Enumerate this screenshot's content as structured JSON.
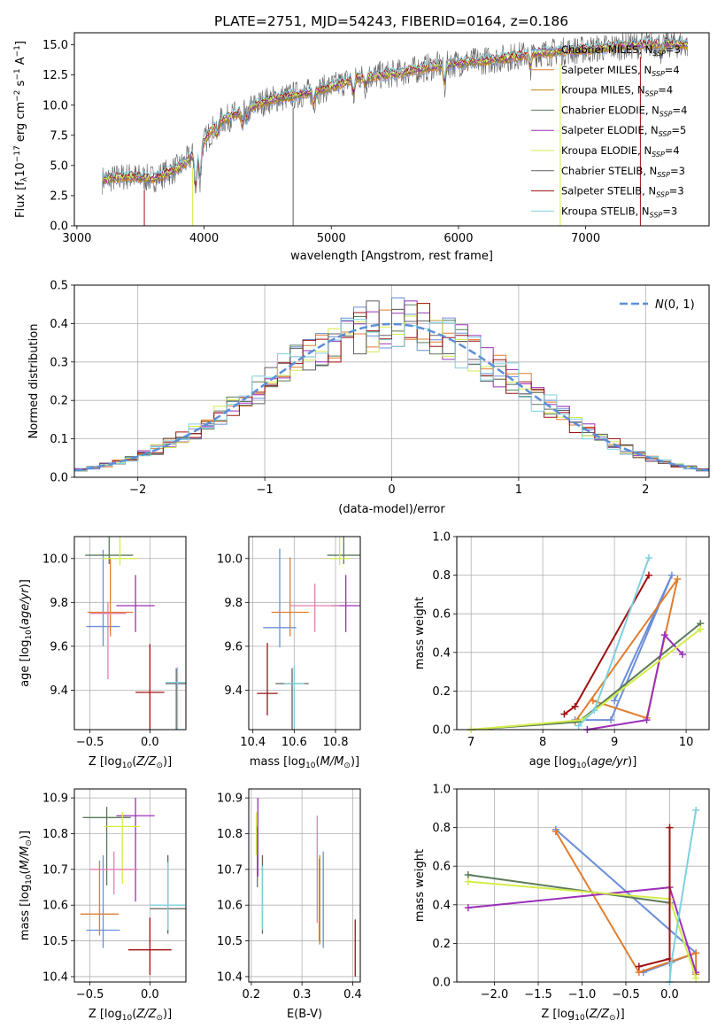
{
  "title": "PLATE=2751, MJD=54243, FIBERID=0164, z=0.186",
  "colors": {
    "chabrier_miles": "#6a8fd8",
    "salpeter_miles": "#e07d2e",
    "kroupa_miles": "#b8860b",
    "chabrier_elodie": "#5a7a5a",
    "salpeter_elodie": "#9b30b8",
    "kroupa_elodie": "#d4ec4a",
    "chabrier_stelib": "#606060",
    "salpeter_stelib": "#a01010",
    "kroupa_stelib": "#7fd0e0",
    "extra_pink": "#e37fb0",
    "gaussian": "#5b8fd8",
    "grid": "#b0b0b0"
  },
  "chart_data": [
    {
      "id": "spectrum",
      "type": "line",
      "xlabel": "wavelength [Angstrom, rest frame]",
      "ylabel": "Flux [f_λ 10^-17 erg cm^-2 s^-1 A^-1]",
      "xlim": [
        2980,
        7970
      ],
      "ylim": [
        0,
        16
      ],
      "xticks": [
        "3000",
        "4000",
        "5000",
        "6000",
        "7000"
      ],
      "yticks": [
        "0.0",
        "2.5",
        "5.0",
        "7.5",
        "10.0",
        "12.5",
        "15.0"
      ],
      "legend_position": "top-right",
      "legend": [
        {
          "name": "Chabrier MILES, N",
          "sub": "SSP",
          "suffix": "=3",
          "color_key": "chabrier_miles"
        },
        {
          "name": "Salpeter MILES, N",
          "sub": "SSP",
          "suffix": "=4",
          "color_key": "salpeter_miles"
        },
        {
          "name": "Kroupa MILES, N",
          "sub": "SSP",
          "suffix": "=4",
          "color_key": "kroupa_miles"
        },
        {
          "name": "Chabrier ELODIE, N",
          "sub": "SSP",
          "suffix": "=4",
          "color_key": "chabrier_elodie"
        },
        {
          "name": "Salpeter ELODIE, N",
          "sub": "SSP",
          "suffix": "=5",
          "color_key": "salpeter_elodie"
        },
        {
          "name": "Kroupa ELODIE, N",
          "sub": "SSP",
          "suffix": "=4",
          "color_key": "kroupa_elodie"
        },
        {
          "name": "Chabrier STELIB, N",
          "sub": "SSP",
          "suffix": "=3",
          "color_key": "chabrier_stelib"
        },
        {
          "name": "Salpeter STELIB, N",
          "sub": "SSP",
          "suffix": "=3",
          "color_key": "salpeter_stelib"
        },
        {
          "name": "Kroupa STELIB, N",
          "sub": "SSP",
          "suffix": "=3",
          "color_key": "kroupa_stelib"
        }
      ],
      "continuum": [
        [
          3200,
          3.8
        ],
        [
          3400,
          4.1
        ],
        [
          3600,
          3.9
        ],
        [
          3800,
          4.8
        ],
        [
          3950,
          6.2
        ],
        [
          4100,
          8.5
        ],
        [
          4300,
          9.5
        ],
        [
          4500,
          10.4
        ],
        [
          4800,
          11.0
        ],
        [
          5000,
          11.5
        ],
        [
          5200,
          12.3
        ],
        [
          5500,
          12.6
        ],
        [
          5800,
          13.2
        ],
        [
          6000,
          13.5
        ],
        [
          6300,
          13.8
        ],
        [
          6600,
          14.3
        ],
        [
          7000,
          14.6
        ],
        [
          7300,
          14.9
        ],
        [
          7600,
          15.1
        ],
        [
          7800,
          15.0
        ]
      ]
    },
    {
      "id": "residuals",
      "type": "line",
      "xlabel": "(data-model)/error",
      "ylabel": "Normed distribution",
      "xlim": [
        -2.5,
        2.5
      ],
      "ylim": [
        0,
        0.5
      ],
      "xticks": [
        "−2",
        "−1",
        "0",
        "1",
        "2"
      ],
      "yticks": [
        "0.0",
        "0.1",
        "0.2",
        "0.3",
        "0.4",
        "0.5"
      ],
      "legend_position": "top-right",
      "gaussian_label": "N(0, 1)"
    },
    {
      "id": "age_vs_Z",
      "type": "scatter",
      "xlabel": "Z [log10(Z/Z⊙)]",
      "ylabel": "age [log10(age/yr)]",
      "xlim": [
        -0.63,
        0.3
      ],
      "ylim": [
        9.22,
        10.1
      ],
      "xticks": [
        "−0.5",
        "0.0"
      ],
      "yticks": [
        "9.4",
        "9.6",
        "9.8",
        "10.0"
      ],
      "points": [
        {
          "x": -0.39,
          "y": 9.69,
          "xerr": 0.14,
          "yerr": [
            0.09,
            0.35
          ],
          "color_key": "chabrier_miles"
        },
        {
          "x": -0.33,
          "y": 9.755,
          "xerr": 0.19,
          "yerr": [
            0.11,
            0.25
          ],
          "color_key": "salpeter_miles"
        },
        {
          "x": -0.34,
          "y": 10.015,
          "xerr": 0.2,
          "yerr": [
            0.04,
            0.37
          ],
          "color_key": "chabrier_elodie"
        },
        {
          "x": -0.12,
          "y": 9.785,
          "xerr": 0.16,
          "yerr": [
            0.12,
            0.14
          ],
          "color_key": "salpeter_elodie"
        },
        {
          "x": -0.25,
          "y": 10.0,
          "xerr": 0.15,
          "yerr": [
            0.03,
            0.26
          ],
          "color_key": "kroupa_elodie"
        },
        {
          "x": 0.22,
          "y": 9.43,
          "xerr": 0.09,
          "yerr": [
            0.35,
            0.07
          ],
          "color_key": "chabrier_stelib"
        },
        {
          "x": 0.0,
          "y": 9.39,
          "xerr": 0.12,
          "yerr": [
            0.23,
            0.22
          ],
          "color_key": "salpeter_stelib"
        },
        {
          "x": 0.23,
          "y": 9.435,
          "xerr": 0.1,
          "yerr": [
            0.32,
            0.07
          ],
          "color_key": "kroupa_stelib"
        },
        {
          "x": -0.35,
          "y": 9.75,
          "xerr": 0.15,
          "yerr": [
            0.3,
            0.05
          ],
          "color_key": "extra_pink"
        }
      ]
    },
    {
      "id": "age_vs_mass",
      "type": "scatter",
      "xlabel": "mass [log10(M/M⊙)]",
      "ylabel": "",
      "xlim": [
        10.38,
        10.92
      ],
      "ylim": [
        9.22,
        10.1
      ],
      "xticks": [
        "10.4",
        "10.6",
        "10.8"
      ],
      "yticks": [
        "9.4",
        "9.6",
        "9.8",
        "10.0"
      ],
      "points": [
        {
          "x": 10.53,
          "y": 9.685,
          "xerr": 0.08,
          "yerr": [
            0.09,
            0.36
          ],
          "color_key": "chabrier_miles"
        },
        {
          "x": 10.58,
          "y": 9.755,
          "xerr": 0.09,
          "yerr": [
            0.11,
            0.25
          ],
          "color_key": "salpeter_miles"
        },
        {
          "x": 10.84,
          "y": 10.015,
          "xerr": 0.08,
          "yerr": [
            0.04,
            0.37
          ],
          "color_key": "chabrier_elodie"
        },
        {
          "x": 10.85,
          "y": 9.785,
          "xerr": 0.07,
          "yerr": [
            0.12,
            0.14
          ],
          "color_key": "salpeter_elodie"
        },
        {
          "x": 10.82,
          "y": 10.0,
          "xerr": 0.05,
          "yerr": [
            0.03,
            0.26
          ],
          "color_key": "kroupa_elodie"
        },
        {
          "x": 10.59,
          "y": 9.43,
          "xerr": 0.08,
          "yerr": [
            0.35,
            0.07
          ],
          "color_key": "chabrier_stelib"
        },
        {
          "x": 10.47,
          "y": 9.385,
          "xerr": 0.05,
          "yerr": [
            0.1,
            0.23
          ],
          "color_key": "salpeter_stelib"
        },
        {
          "x": 10.6,
          "y": 9.43,
          "xerr": 0.05,
          "yerr": [
            0.35,
            0.08
          ],
          "color_key": "kroupa_stelib"
        },
        {
          "x": 10.7,
          "y": 9.785,
          "xerr": 0.12,
          "yerr": [
            0.12,
            0.1
          ],
          "color_key": "extra_pink"
        }
      ]
    },
    {
      "id": "weight_vs_age",
      "type": "line",
      "xlabel": "age [log10(age/yr)]",
      "ylabel": "mass weight",
      "xlim": [
        6.8,
        10.32
      ],
      "ylim": [
        0,
        1
      ],
      "xticks": [
        "7",
        "8",
        "9",
        "10"
      ],
      "yticks": [
        "0.0",
        "0.2",
        "0.4",
        "0.6",
        "0.8",
        "1.0"
      ],
      "series": [
        {
          "color_key": "chabrier_miles",
          "points": [
            [
              8.45,
              0.05
            ],
            [
              8.95,
              0.05
            ],
            [
              9.8,
              0.8
            ],
            [
              9.0,
              0.15
            ]
          ]
        },
        {
          "color_key": "salpeter_miles",
          "points": [
            [
              8.7,
              0.15
            ],
            [
              9.45,
              0.06
            ],
            [
              9.88,
              0.78
            ],
            [
              8.45,
              0.04
            ]
          ]
        },
        {
          "color_key": "chabrier_elodie",
          "points": [
            [
              7.0,
              0.0
            ],
            [
              8.5,
              0.04
            ],
            [
              10.2,
              0.55
            ]
          ]
        },
        {
          "color_key": "salpeter_elodie",
          "points": [
            [
              8.62,
              0.0
            ],
            [
              9.45,
              0.05
            ],
            [
              9.7,
              0.49
            ],
            [
              9.95,
              0.39
            ]
          ]
        },
        {
          "color_key": "kroupa_elodie",
          "points": [
            [
              7.0,
              0.0
            ],
            [
              8.55,
              0.05
            ],
            [
              10.2,
              0.52
            ]
          ]
        },
        {
          "color_key": "salpeter_stelib",
          "points": [
            [
              8.3,
              0.08
            ],
            [
              8.45,
              0.12
            ],
            [
              9.48,
              0.8
            ]
          ]
        },
        {
          "color_key": "kroupa_stelib",
          "points": [
            [
              8.5,
              0.02
            ],
            [
              8.72,
              0.1
            ],
            [
              9.48,
              0.89
            ]
          ]
        }
      ]
    },
    {
      "id": "mass_vs_Z",
      "type": "scatter",
      "xlabel": "Z [log10(Z/Z⊙)]",
      "ylabel": "mass [log10(M/M⊙)]",
      "xlim": [
        -0.63,
        0.3
      ],
      "ylim": [
        10.385,
        10.925
      ],
      "xticks": [
        "−0.5",
        "0.0"
      ],
      "yticks": [
        "10.4",
        "10.5",
        "10.6",
        "10.7",
        "10.8",
        "10.9"
      ],
      "points": [
        {
          "x": -0.39,
          "y": 10.53,
          "xerr": 0.14,
          "yerr": [
            0.05,
            0.21
          ],
          "color_key": "chabrier_miles"
        },
        {
          "x": -0.42,
          "y": 10.575,
          "xerr": 0.16,
          "yerr": [
            0.06,
            0.15
          ],
          "color_key": "salpeter_miles"
        },
        {
          "x": -0.36,
          "y": 10.845,
          "xerr": 0.2,
          "yerr": [
            0.19,
            0.03
          ],
          "color_key": "chabrier_elodie"
        },
        {
          "x": -0.12,
          "y": 10.85,
          "xerr": 0.16,
          "yerr": [
            0.24,
            0.05
          ],
          "color_key": "salpeter_elodie"
        },
        {
          "x": -0.23,
          "y": 10.82,
          "xerr": 0.15,
          "yerr": [
            0.16,
            0.04
          ],
          "color_key": "kroupa_elodie"
        },
        {
          "x": 0.15,
          "y": 10.59,
          "xerr": 0.15,
          "yerr": [
            0.07,
            0.15
          ],
          "color_key": "chabrier_stelib"
        },
        {
          "x": 0.0,
          "y": 10.475,
          "xerr": 0.18,
          "yerr": [
            0.07,
            0.09
          ],
          "color_key": "salpeter_stelib"
        },
        {
          "x": 0.15,
          "y": 10.6,
          "xerr": 0.15,
          "yerr": [
            0.07,
            0.12
          ],
          "color_key": "kroupa_stelib"
        },
        {
          "x": -0.3,
          "y": 10.7,
          "xerr": 0.2,
          "yerr": [
            0.07,
            0.05
          ],
          "color_key": "extra_pink"
        }
      ]
    },
    {
      "id": "mass_vs_ebv",
      "type": "scatter",
      "xlabel": "E(B-V)",
      "ylabel": "",
      "xlim": [
        0.195,
        0.415
      ],
      "ylim": [
        10.385,
        10.925
      ],
      "xticks": [
        "0.2",
        "0.3",
        "0.4"
      ],
      "yticks": [
        "10.4",
        "10.5",
        "10.6",
        "10.7",
        "10.8",
        "10.9"
      ],
      "points": [
        {
          "x": 0.342,
          "y": 10.615,
          "yerr": [
            0.135,
            0.135
          ],
          "color_key": "chabrier_miles"
        },
        {
          "x": 0.334,
          "y": 10.59,
          "yerr": [
            0.09,
            0.14
          ],
          "color_key": "salpeter_miles"
        },
        {
          "x": 0.335,
          "y": 10.66,
          "yerr": [
            0.17,
            0.08
          ],
          "color_key": "kroupa_miles"
        },
        {
          "x": 0.212,
          "y": 10.735,
          "yerr": [
            0.085,
            0.085
          ],
          "color_key": "chabrier_elodie"
        },
        {
          "x": 0.213,
          "y": 10.78,
          "yerr": [
            0.1,
            0.12
          ],
          "color_key": "salpeter_elodie"
        },
        {
          "x": 0.21,
          "y": 10.8,
          "yerr": [
            0.06,
            0.06
          ],
          "color_key": "kroupa_elodie"
        },
        {
          "x": 0.222,
          "y": 10.63,
          "yerr": [
            0.11,
            0.11
          ],
          "color_key": "chabrier_stelib"
        },
        {
          "x": 0.405,
          "y": 10.47,
          "yerr": [
            0.07,
            0.09
          ],
          "color_key": "salpeter_stelib"
        },
        {
          "x": 0.222,
          "y": 10.62,
          "yerr": [
            0.09,
            0.09
          ],
          "color_key": "kroupa_stelib"
        },
        {
          "x": 0.33,
          "y": 10.7,
          "yerr": [
            0.15,
            0.15
          ],
          "color_key": "extra_pink"
        }
      ]
    },
    {
      "id": "weight_vs_Z",
      "type": "line",
      "xlabel": "Z [log10(Z/Z⊙)]",
      "ylabel": "mass weight",
      "xlim": [
        -2.43,
        0.45
      ],
      "ylim": [
        0,
        1
      ],
      "xticks": [
        "−2.0",
        "−1.5",
        "−1.0",
        "−0.5",
        "0.0"
      ],
      "yticks": [
        "0.0",
        "0.2",
        "0.4",
        "0.6",
        "0.8",
        "1.0"
      ],
      "series": [
        {
          "color_key": "chabrier_miles",
          "points": [
            [
              -1.3,
              0.79
            ],
            [
              0.3,
              0.15
            ],
            [
              -0.3,
              0.05
            ],
            [
              0.0,
              0.1
            ]
          ]
        },
        {
          "color_key": "salpeter_miles",
          "points": [
            [
              -1.3,
              0.78
            ],
            [
              -0.35,
              0.05
            ],
            [
              0.3,
              0.15
            ],
            [
              0.3,
              0.04
            ]
          ]
        },
        {
          "color_key": "chabrier_elodie",
          "points": [
            [
              -2.3,
              0.555
            ],
            [
              0.0,
              0.41
            ]
          ]
        },
        {
          "color_key": "salpeter_elodie",
          "points": [
            [
              -2.3,
              0.385
            ],
            [
              0.0,
              0.49
            ],
            [
              0.3,
              0.05
            ]
          ]
        },
        {
          "color_key": "kroupa_elodie",
          "points": [
            [
              -2.3,
              0.52
            ],
            [
              0.0,
              0.43
            ],
            [
              0.3,
              0.02
            ]
          ]
        },
        {
          "color_key": "salpeter_stelib",
          "points": [
            [
              0.0,
              0.8
            ],
            [
              0.0,
              0.12
            ],
            [
              -0.35,
              0.08
            ]
          ]
        },
        {
          "color_key": "kroupa_stelib",
          "points": [
            [
              0.0,
              0.0
            ],
            [
              0.02,
              0.1
            ],
            [
              0.3,
              0.89
            ]
          ]
        }
      ]
    }
  ]
}
